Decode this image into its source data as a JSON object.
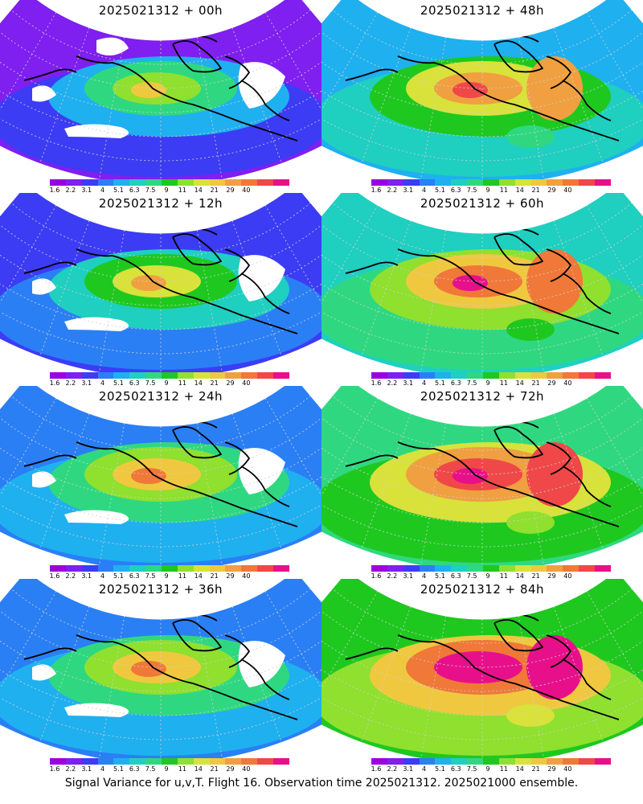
{
  "panels": [
    {
      "title": "2025021312 + 00h",
      "level": 0
    },
    {
      "title": "2025021312 + 48h",
      "level": 3
    },
    {
      "title": "2025021312 + 12h",
      "level": 1
    },
    {
      "title": "2025021312 + 60h",
      "level": 4
    },
    {
      "title": "2025021312 + 24h",
      "level": 2
    },
    {
      "title": "2025021312 + 72h",
      "level": 5
    },
    {
      "title": "2025021312 + 36h",
      "level": 2
    },
    {
      "title": "2025021312 + 84h",
      "level": 6
    }
  ],
  "colorbar": {
    "labels": [
      "1.6",
      "2.2",
      "3.1",
      "4",
      "5.1",
      "6.3",
      "7.5",
      "9",
      "11",
      "14",
      "21",
      "29",
      "40"
    ],
    "colors": [
      "#9b00e0",
      "#7f1ff0",
      "#3c3cf5",
      "#2a7ff5",
      "#1fb0f0",
      "#1fcfc0",
      "#2fd880",
      "#1fc81f",
      "#8fe02f",
      "#d8e23a",
      "#f0c840",
      "#f0a040",
      "#f07838",
      "#f04848",
      "#e8108a"
    ]
  },
  "footer": "Signal Variance for u,v,T. Flight 16. Observation time 2025021312. 2025021000 ensemble.",
  "colors": {
    "coast": "#000000",
    "grid": "#d0d0d0",
    "background": "#ffffff"
  }
}
